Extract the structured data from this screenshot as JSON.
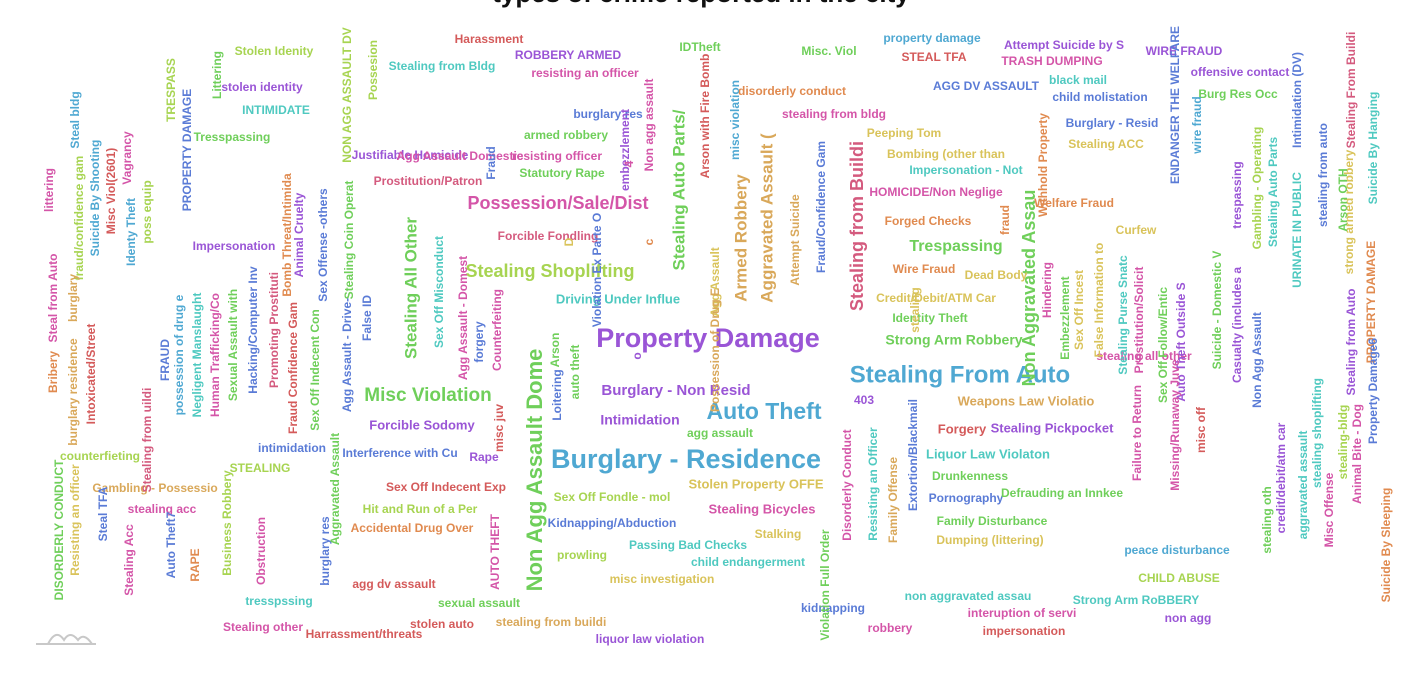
{
  "chart_data": {
    "type": "wordcloud",
    "title": "",
    "words": [
      {
        "text": "Property Damage",
        "color": "#9a55d6"
      },
      {
        "text": "Burglary - Residence",
        "color": "#4fa8d2"
      },
      {
        "text": "Stealing From Auto",
        "color": "#4fa8d2"
      },
      {
        "text": "Auto Theft",
        "color": "#4fa8d2"
      },
      {
        "text": "Non Agg Assault Dome",
        "color": "#6fcf5a"
      },
      {
        "text": "Misc Violation",
        "color": "#6fcf5a"
      },
      {
        "text": "Possession/Sale/Dist",
        "color": "#d455a8"
      },
      {
        "text": "Stealing Shoplifting",
        "color": "#a7d451"
      },
      {
        "text": "Stealing from Buildi",
        "color": "#d45a7e"
      },
      {
        "text": "Non Aggravated Assau",
        "color": "#6fcf5a"
      },
      {
        "text": "Aggravated Assault (",
        "color": "#d9a85a"
      },
      {
        "text": "Armed Robbery",
        "color": "#d9a85a"
      },
      {
        "text": "Stealing Auto Parts/",
        "color": "#6fcf5a"
      },
      {
        "text": "Stealing All Other",
        "color": "#6fcf5a"
      },
      {
        "text": "Trespassing",
        "color": "#6fcf5a"
      },
      {
        "text": "Burglary - Non Resid",
        "color": "#9a55d6"
      },
      {
        "text": "Intimidation",
        "color": "#9a55d6"
      },
      {
        "text": "Strong Arm Robbery",
        "color": "#6fcf5a"
      },
      {
        "text": "Stealing Pickpocket",
        "color": "#9a55d6"
      },
      {
        "text": "Weapons Law Violatio",
        "color": "#d9a85a"
      },
      {
        "text": "Driving Under Influe",
        "color": "#4fc9c0"
      },
      {
        "text": "Forcible Sodomy",
        "color": "#9a55d6"
      },
      {
        "text": "Liquor Law Violaton",
        "color": "#4fc9c0"
      },
      {
        "text": "Stolen Property OFFE",
        "color": "#d9c35a"
      },
      {
        "text": "Stealing Bicycles",
        "color": "#d455a8"
      },
      {
        "text": "Kidnapping/Abduction",
        "color": "#5a7bd6"
      },
      {
        "text": "Pornography",
        "color": "#5a7bd6"
      },
      {
        "text": "Family Disturbance",
        "color": "#6fcf5a"
      },
      {
        "text": "Dumping (littering)",
        "color": "#d9c35a"
      },
      {
        "text": "Drunkenness",
        "color": "#6fcf5a"
      },
      {
        "text": "Forgery",
        "color": "#d45a5a"
      },
      {
        "text": "Passing Bad Checks",
        "color": "#4fc9c0"
      },
      {
        "text": "child endangerment",
        "color": "#4fc9c0"
      },
      {
        "text": "misc investigation",
        "color": "#d9c35a"
      },
      {
        "text": "Stalking",
        "color": "#d9c35a"
      },
      {
        "text": "prowling",
        "color": "#a7d451"
      },
      {
        "text": "Sex Off Fondle - mol",
        "color": "#a7d451"
      },
      {
        "text": "Sex Off Indecent Exp",
        "color": "#d45a5a"
      },
      {
        "text": "Hit and Run of a Per",
        "color": "#a7d451"
      },
      {
        "text": "Accidental Drug Over",
        "color": "#e08a4f"
      },
      {
        "text": "Interference with Cu",
        "color": "#5a7bd6"
      },
      {
        "text": "Rape",
        "color": "#9a55d6"
      },
      {
        "text": "agg assault",
        "color": "#6fcf5a"
      },
      {
        "text": "403",
        "color": "#9a55d6"
      },
      {
        "text": "Credit/Debit/ATM Car",
        "color": "#d9c35a"
      },
      {
        "text": "Identity Theft",
        "color": "#6fcf5a"
      },
      {
        "text": "Wire Fraud",
        "color": "#e08a4f"
      },
      {
        "text": "Dead Body",
        "color": "#d9c35a"
      },
      {
        "text": "Forged Checks",
        "color": "#e08a4f"
      },
      {
        "text": "HOMICIDE/Non Neglige",
        "color": "#d455a8"
      },
      {
        "text": "Impersonation - Not",
        "color": "#4fc9c0"
      },
      {
        "text": "Bombing (other than",
        "color": "#d9c35a"
      },
      {
        "text": "Peeping Tom",
        "color": "#d9c35a"
      },
      {
        "text": "stealing from bldg",
        "color": "#d455a8"
      },
      {
        "text": "disorderly conduct",
        "color": "#e08a4f"
      },
      {
        "text": "AGG DV ASSAULT",
        "color": "#5a7bd6"
      },
      {
        "text": "child molistation",
        "color": "#5a7bd6"
      },
      {
        "text": "black mail",
        "color": "#4fc9c0"
      },
      {
        "text": "Burglary - Resid",
        "color": "#5a7bd6"
      },
      {
        "text": "Stealing ACC",
        "color": "#d9c35a"
      },
      {
        "text": "Welfare Fraud",
        "color": "#e08a4f"
      },
      {
        "text": "Curfew",
        "color": "#d9c35a"
      },
      {
        "text": "property damage",
        "color": "#4fa8d2"
      },
      {
        "text": "STEAL TFA",
        "color": "#d45a5a"
      },
      {
        "text": "Attempt Suicide by S",
        "color": "#9a55d6"
      },
      {
        "text": "TRASH DUMPING",
        "color": "#d455a8"
      },
      {
        "text": "WIRE FRAUD",
        "color": "#9a55d6"
      },
      {
        "text": "offensive contact",
        "color": "#9a55d6"
      },
      {
        "text": "Burg Res Occ",
        "color": "#6fcf5a"
      },
      {
        "text": "Misc. Viol",
        "color": "#6fcf5a"
      },
      {
        "text": "IDTheft",
        "color": "#6fcf5a"
      },
      {
        "text": "ROBBERY ARMED",
        "color": "#9a55d6"
      },
      {
        "text": "resisting an officer",
        "color": "#d455a8"
      },
      {
        "text": "Harassment",
        "color": "#d45a5a"
      },
      {
        "text": "Stealing from Bldg",
        "color": "#4fc9c0"
      },
      {
        "text": "Stolen Idenity",
        "color": "#a7d451"
      },
      {
        "text": "stolen identity",
        "color": "#9a55d6"
      },
      {
        "text": "INTIMIDATE",
        "color": "#4fc9c0"
      },
      {
        "text": "Tresspassing",
        "color": "#6fcf5a"
      },
      {
        "text": "burglary res",
        "color": "#5a7bd6"
      },
      {
        "text": "armed robbery",
        "color": "#6fcf5a"
      },
      {
        "text": "Justifiable Homicide",
        "color": "#9a55d6"
      },
      {
        "text": "Agg Assault Domestic",
        "color": "#d455a8"
      },
      {
        "text": "resisting officer",
        "color": "#d455a8"
      },
      {
        "text": "Statutory Rape",
        "color": "#6fcf5a"
      },
      {
        "text": "Prostitution/Patron",
        "color": "#d45a7e"
      },
      {
        "text": "Forcible Fondling",
        "color": "#d45a7e"
      },
      {
        "text": "Impersonation",
        "color": "#9a55d6"
      },
      {
        "text": "intimidation",
        "color": "#5a7bd6"
      },
      {
        "text": "counterfieting",
        "color": "#a7d451"
      },
      {
        "text": "STEALING",
        "color": "#a7d451"
      },
      {
        "text": "Gambling - Possessio",
        "color": "#d9a85a"
      },
      {
        "text": "stealing acc",
        "color": "#d455a8"
      },
      {
        "text": "agg dv assault",
        "color": "#d45a5a"
      },
      {
        "text": "tresspssing",
        "color": "#4fc9c0"
      },
      {
        "text": "Stealing other",
        "color": "#d455a8"
      },
      {
        "text": "Harrassment/threats",
        "color": "#d45a5a"
      },
      {
        "text": "stolen auto",
        "color": "#d45a5a"
      },
      {
        "text": "sexual assault",
        "color": "#6fcf5a"
      },
      {
        "text": "stealing from buildi",
        "color": "#d9a85a"
      },
      {
        "text": "liquor law violation",
        "color": "#9a55d6"
      },
      {
        "text": "kidnapping",
        "color": "#5a7bd6"
      },
      {
        "text": "robbery",
        "color": "#d455a8"
      },
      {
        "text": "non aggravated assau",
        "color": "#4fc9c0"
      },
      {
        "text": "interuption of servi",
        "color": "#d455a8"
      },
      {
        "text": "impersonation",
        "color": "#d45a5a"
      },
      {
        "text": "Strong Arm RoBBERY",
        "color": "#4fc9c0"
      },
      {
        "text": "non agg",
        "color": "#9a55d6"
      },
      {
        "text": "CHILD ABUSE",
        "color": "#a7d451"
      },
      {
        "text": "peace disturbance",
        "color": "#4fa8d2"
      },
      {
        "text": "Defrauding an Innkee",
        "color": "#6fcf5a"
      },
      {
        "text": "stealing all other",
        "color": "#d455a8"
      },
      {
        "text": "Littering",
        "color": "#6fcf5a"
      },
      {
        "text": "TRESPASS",
        "color": "#a7d451"
      },
      {
        "text": "NON AGG ASSAULT DV",
        "color": "#a7d451"
      },
      {
        "text": "Possesion",
        "color": "#a7d451"
      },
      {
        "text": "littering",
        "color": "#d455a8"
      },
      {
        "text": "fraud/confidence gam",
        "color": "#a7d451"
      },
      {
        "text": "Steal bldg",
        "color": "#4fa8d2"
      },
      {
        "text": "Suicide By Shooting",
        "color": "#4fa8d2"
      },
      {
        "text": "Misc Viol(2601)",
        "color": "#d45a5a"
      },
      {
        "text": "Vagrancy",
        "color": "#d455a8"
      },
      {
        "text": "Identy Theft",
        "color": "#4fa8d2"
      },
      {
        "text": "poss equip",
        "color": "#a7d451"
      },
      {
        "text": "PROPERTY DAMAGE",
        "color": "#5a7bd6"
      },
      {
        "text": "Steal from Auto",
        "color": "#d455a8"
      },
      {
        "text": "burglary",
        "color": "#d9a85a"
      },
      {
        "text": "Bribery",
        "color": "#e08a4f"
      },
      {
        "text": "burglary residence",
        "color": "#d9a85a"
      },
      {
        "text": "Intoxicated/Street",
        "color": "#d45a5a"
      },
      {
        "text": "Stealing from uildi",
        "color": "#d45a7e"
      },
      {
        "text": "FRAUD",
        "color": "#5a7bd6"
      },
      {
        "text": "possession of drug e",
        "color": "#4fa8d2"
      },
      {
        "text": "Negligent Manslaught",
        "color": "#4fc9c0"
      },
      {
        "text": "Human Trafficking/Co",
        "color": "#d455a8"
      },
      {
        "text": "Sexual Assault with",
        "color": "#6fcf5a"
      },
      {
        "text": "Hacking/Computer Inv",
        "color": "#5a7bd6"
      },
      {
        "text": "Promoting Prostituti",
        "color": "#d45a7e"
      },
      {
        "text": "Bomb Threat/Intimida",
        "color": "#e08a4f"
      },
      {
        "text": "Animal Cruelty",
        "color": "#9a55d6"
      },
      {
        "text": "Fraud Confidence Gam",
        "color": "#d45a5a"
      },
      {
        "text": "Sex Off Indecent Con",
        "color": "#6fcf5a"
      },
      {
        "text": "Sex Offense -others",
        "color": "#5a7bd6"
      },
      {
        "text": "Stealing Coin Operat",
        "color": "#6fcf5a"
      },
      {
        "text": "False ID",
        "color": "#5a7bd6"
      },
      {
        "text": "Agg Assault - Drive-",
        "color": "#5a7bd6"
      },
      {
        "text": "Sex Off Misconduct",
        "color": "#4fc9c0"
      },
      {
        "text": "Agg Assault - Domest",
        "color": "#d455a8"
      },
      {
        "text": "forgery",
        "color": "#5a7bd6"
      },
      {
        "text": "Counterfeiting",
        "color": "#d455a8"
      },
      {
        "text": "misc juv",
        "color": "#d45a5a"
      },
      {
        "text": "Fraud",
        "color": "#5a7bd6"
      },
      {
        "text": "Loitering",
        "color": "#5a7bd6"
      },
      {
        "text": "Arson",
        "color": "#6fcf5a"
      },
      {
        "text": "auto theft",
        "color": "#6fcf5a"
      },
      {
        "text": "Violation Ex Parte O",
        "color": "#5a7bd6"
      },
      {
        "text": "embezzlement",
        "color": "#9a55d6"
      },
      {
        "text": "Non agg assault",
        "color": "#d455a8"
      },
      {
        "text": "Arson with Fire Bomb",
        "color": "#d45a5a"
      },
      {
        "text": "misc violation",
        "color": "#4fa8d2"
      },
      {
        "text": "Agg Assault",
        "color": "#d9c35a"
      },
      {
        "text": "Possession of Drug E",
        "color": "#d9a85a"
      },
      {
        "text": "Attempt Suicide",
        "color": "#d9a85a"
      },
      {
        "text": "Fraud/Confidence Gam",
        "color": "#5a7bd6"
      },
      {
        "text": "Disorderly Conduct",
        "color": "#d455a8"
      },
      {
        "text": "Resisting an Officer",
        "color": "#4fc9c0"
      },
      {
        "text": "Family Offense",
        "color": "#d9a85a"
      },
      {
        "text": "Extortion/Blackmail",
        "color": "#5a7bd6"
      },
      {
        "text": "Violation Full Order",
        "color": "#6fcf5a"
      },
      {
        "text": "Withhold Property",
        "color": "#e08a4f"
      },
      {
        "text": "Hindering",
        "color": "#d455a8"
      },
      {
        "text": "Embezzlement",
        "color": "#6fcf5a"
      },
      {
        "text": "Sex Off Incest",
        "color": "#d9c35a"
      },
      {
        "text": "False Information to",
        "color": "#d9c35a"
      },
      {
        "text": "Stealing Purse Snatc",
        "color": "#4fc9c0"
      },
      {
        "text": "Prostitution/Solicit",
        "color": "#d455a8"
      },
      {
        "text": "Failure to Return",
        "color": "#d455a8"
      },
      {
        "text": "Sex Off Follow/Entic",
        "color": "#6fcf5a"
      },
      {
        "text": "Auto Theft Outside S",
        "color": "#9a55d6"
      },
      {
        "text": "Missing/Runaway Juve",
        "color": "#d455a8"
      },
      {
        "text": "misc off",
        "color": "#d45a5a"
      },
      {
        "text": "Suicide - Domestic V",
        "color": "#6fcf5a"
      },
      {
        "text": "Casualty (includes a",
        "color": "#9a55d6"
      },
      {
        "text": "Non Agg Assault",
        "color": "#5a7bd6"
      },
      {
        "text": "ENDANGER THE WELFARE",
        "color": "#5a7bd6"
      },
      {
        "text": "wire fraud",
        "color": "#4fa8d2"
      },
      {
        "text": "trespassing",
        "color": "#9a55d6"
      },
      {
        "text": "Gambling - Operating",
        "color": "#a7d451"
      },
      {
        "text": "Stealing Auto Parts",
        "color": "#4fc9c0"
      },
      {
        "text": "Intimidation (DV)",
        "color": "#5a7bd6"
      },
      {
        "text": "URINATE IN PUBLIC",
        "color": "#4fc9c0"
      },
      {
        "text": "stealing from auto",
        "color": "#5a7bd6"
      },
      {
        "text": "Stealing From Buildi",
        "color": "#d45a7e"
      },
      {
        "text": "strong armed robbery",
        "color": "#d9c35a"
      },
      {
        "text": "Arson OTH",
        "color": "#6fcf5a"
      },
      {
        "text": "Suicide By Hanging",
        "color": "#4fc9c0"
      },
      {
        "text": "PROPERTY DAMAGE",
        "color": "#e08a4f"
      },
      {
        "text": "Stealing from Auto",
        "color": "#9a55d6"
      },
      {
        "text": "Property Damage6",
        "color": "#5a7bd6"
      },
      {
        "text": "stealing oth",
        "color": "#6fcf5a"
      },
      {
        "text": "credit/debit/atm car",
        "color": "#9a55d6"
      },
      {
        "text": "aggravated assault",
        "color": "#4fc9c0"
      },
      {
        "text": "stealing shoplifting",
        "color": "#4fc9c0"
      },
      {
        "text": "Misc Offense",
        "color": "#d455a8"
      },
      {
        "text": "stealing-bldg",
        "color": "#a7d451"
      },
      {
        "text": "Animal Bite - Dog",
        "color": "#d455a8"
      },
      {
        "text": "Suicide By Sleeping",
        "color": "#e08a4f"
      },
      {
        "text": "DISORDERLY CONDUCT",
        "color": "#6fcf5a"
      },
      {
        "text": "Resisting an officer",
        "color": "#d9c35a"
      },
      {
        "text": "Steal TFA",
        "color": "#5a7bd6"
      },
      {
        "text": "Stealing Acc",
        "color": "#d455a8"
      },
      {
        "text": "Auto Theft7",
        "color": "#5a7bd6"
      },
      {
        "text": "RAPE",
        "color": "#e08a4f"
      },
      {
        "text": "Business Robbery",
        "color": "#a7d451"
      },
      {
        "text": "Obstruction",
        "color": "#d455a8"
      },
      {
        "text": "burglary res",
        "color": "#5a7bd6"
      },
      {
        "text": "Aggravated Assault",
        "color": "#6fcf5a"
      },
      {
        "text": "AUTO THEFT",
        "color": "#d455a8"
      },
      {
        "text": "stealing",
        "color": "#d9c35a"
      },
      {
        "text": "fraud",
        "color": "#e08a4f"
      },
      {
        "text": "c",
        "color": "#e08a4f"
      },
      {
        "text": "4",
        "color": "#d455a8"
      },
      {
        "text": "o",
        "color": "#9a55d6"
      },
      {
        "text": "D",
        "color": "#d9c35a"
      }
    ]
  }
}
